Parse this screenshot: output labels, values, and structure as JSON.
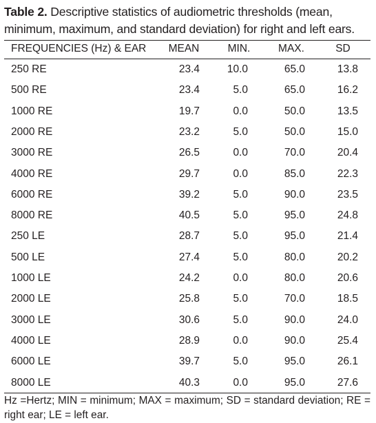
{
  "caption": {
    "label": "Table 2.",
    "text": " Descriptive statistics of audiometric thresholds (mean, minimum, maximum, and standard deviation) for right and left ears."
  },
  "table": {
    "headers": [
      "FREQUENCIES (Hz) & EAR",
      "MEAN",
      "MIN.",
      "MAX.",
      "SD"
    ],
    "rows": [
      [
        "250 RE",
        "23.4",
        "10.0",
        "65.0",
        "13.8"
      ],
      [
        "500 RE",
        "23.4",
        "5.0",
        "65.0",
        "16.2"
      ],
      [
        "1000 RE",
        "19.7",
        "0.0",
        "50.0",
        "13.5"
      ],
      [
        "2000 RE",
        "23.2",
        "5.0",
        "50.0",
        "15.0"
      ],
      [
        "3000 RE",
        "26.5",
        "0.0",
        "70.0",
        "20.4"
      ],
      [
        "4000 RE",
        "29.7",
        "0.0",
        "85.0",
        "22.3"
      ],
      [
        "6000 RE",
        "39.2",
        "5.0",
        "90.0",
        "23.5"
      ],
      [
        "8000 RE",
        "40.5",
        "5.0",
        "95.0",
        "24.8"
      ],
      [
        "250 LE",
        "28.7",
        "5.0",
        "95.0",
        "21.4"
      ],
      [
        "500 LE",
        "27.4",
        "5.0",
        "80.0",
        "20.2"
      ],
      [
        "1000 LE",
        "24.2",
        "0.0",
        "80.0",
        "20.6"
      ],
      [
        "2000 LE",
        "25.8",
        "5.0",
        "70.0",
        "18.5"
      ],
      [
        "3000 LE",
        "30.6",
        "5.0",
        "90.0",
        "24.0"
      ],
      [
        "4000 LE",
        "28.9",
        "0.0",
        "90.0",
        "25.4"
      ],
      [
        "6000 LE",
        "39.7",
        "5.0",
        "95.0",
        "26.1"
      ],
      [
        "8000 LE",
        "40.3",
        "0.0",
        "95.0",
        "27.6"
      ]
    ]
  },
  "footnote": "Hz =Hertz; MIN = minimum; MAX = maximum; SD = standard deviation; RE = right ear; LE = left ear."
}
